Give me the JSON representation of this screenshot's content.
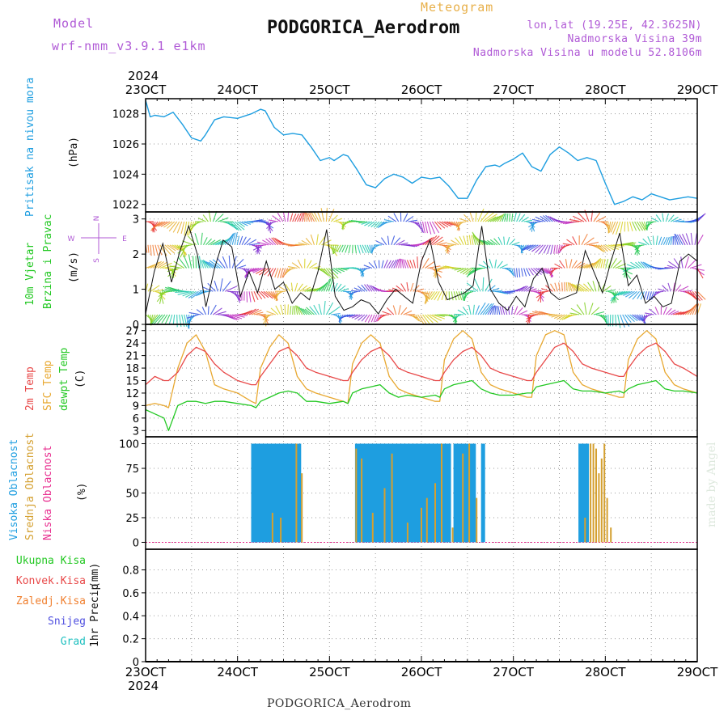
{
  "header": {
    "model_label": "Model",
    "model_name": "wrf-nmm_v3.9.1 e1km",
    "chart_type": "Meteogram",
    "station": "PODGORICA_Aerodrom",
    "coords": "lon,lat (19.25E, 42.3625N)",
    "elevation": "Nadmorska Visina 39m",
    "model_elevation": "Nadmorska Visina u modelu 52.8106m"
  },
  "footer": {
    "station": "PODGORICA_Aerodrom",
    "watermark": "made by Angel"
  },
  "axis": {
    "year": "2024",
    "dates": [
      "23OCT",
      "24OCT",
      "25OCT",
      "26OCT",
      "27OCT",
      "28OCT",
      "29OCT"
    ]
  },
  "colors": {
    "pressure": "#1e9ee0",
    "temp2m": "#e84848",
    "sfc": "#e8a830",
    "dew": "#22c822",
    "cloud_high": "#1e9ee0",
    "cloud_mid": "#d4a030",
    "cloud_low": "#e83090"
  },
  "chart_data": [
    {
      "type": "line",
      "panel": "pressure",
      "ylabel_main": "Pritisak na nivou mora",
      "unit": "(hPa)",
      "yticks": [
        "1022",
        "1024",
        "1026",
        "1028"
      ],
      "ylim": [
        1021.5,
        1029
      ],
      "x_days": [
        0,
        0.05,
        0.1,
        0.2,
        0.3,
        0.4,
        0.5,
        0.6,
        0.65,
        0.75,
        0.85,
        1.0,
        1.15,
        1.25,
        1.3,
        1.4,
        1.5,
        1.6,
        1.7,
        1.8,
        1.9,
        2.0,
        2.05,
        2.15,
        2.2,
        2.3,
        2.4,
        2.5,
        2.6,
        2.7,
        2.8,
        2.9,
        3.0,
        3.1,
        3.2,
        3.3,
        3.4,
        3.5,
        3.6,
        3.7,
        3.8,
        3.85,
        3.9,
        4.0,
        4.1,
        4.2,
        4.3,
        4.4,
        4.5,
        4.6,
        4.7,
        4.8,
        4.9,
        5.0,
        5.1,
        5.2,
        5.3,
        5.4,
        5.5,
        5.6,
        5.7,
        5.8,
        5.9,
        6.0
      ],
      "series": [
        {
          "values": [
            1028.9,
            1027.8,
            1027.9,
            1027.8,
            1028.1,
            1027.3,
            1026.4,
            1026.2,
            1026.6,
            1027.6,
            1027.8,
            1027.7,
            1028.0,
            1028.3,
            1028.2,
            1027.1,
            1026.6,
            1026.7,
            1026.6,
            1025.8,
            1024.9,
            1025.1,
            1024.9,
            1025.3,
            1025.2,
            1024.3,
            1023.3,
            1023.1,
            1023.7,
            1024.0,
            1023.8,
            1023.4,
            1023.8,
            1023.7,
            1023.8,
            1023.2,
            1022.4,
            1022.4,
            1023.6,
            1024.5,
            1024.6,
            1024.5,
            1024.7,
            1025.0,
            1025.4,
            1024.5,
            1024.2,
            1025.3,
            1025.8,
            1025.4,
            1024.9,
            1025.1,
            1024.9,
            1023.4,
            1022.0,
            1022.2,
            1022.5,
            1022.3,
            1022.7,
            1022.5,
            1022.3,
            1022.4,
            1022.5,
            1022.4
          ]
        }
      ]
    },
    {
      "type": "line",
      "panel": "wind",
      "ylabel_main": "10m Vjetar",
      "ylabel_sub": "Brzina i Pravac",
      "unit": "(m/s)",
      "yticks": [
        "0",
        "1",
        "2",
        "3"
      ],
      "ylim": [
        0,
        3.2
      ],
      "compass": {
        "n": "N",
        "s": "S",
        "w": "W",
        "e": "E"
      },
      "series": [
        {
          "name": "Brzina",
          "values": [
            0.3,
            1.5,
            2.3,
            1.2,
            2.1,
            2.8,
            2.0,
            0.5,
            1.6,
            2.4,
            2.2,
            0.8,
            1.5,
            0.9,
            1.8,
            1.0,
            1.2,
            0.6,
            0.9,
            0.7,
            1.5,
            2.7,
            0.8,
            0.4,
            0.5,
            0.7,
            0.6,
            0.3,
            0.7,
            1.0,
            0.8,
            0.6,
            1.8,
            2.4,
            1.2,
            0.7,
            0.8,
            0.9,
            1.1,
            2.8,
            1.0,
            0.6,
            0.4,
            0.8,
            0.5,
            1.3,
            1.6,
            0.9,
            0.7,
            0.8,
            0.9,
            2.1,
            1.5,
            0.9,
            1.8,
            2.6,
            1.1,
            1.4,
            0.6,
            0.8,
            0.5,
            0.6,
            1.8,
            2.0,
            1.8
          ]
        }
      ]
    },
    {
      "type": "line",
      "panel": "temperature",
      "ylabel_t2m": "2m Temp",
      "ylabel_sfc": "SFC Temp",
      "ylabel_dew": "dewpt Temp",
      "unit": "(C)",
      "yticks": [
        "3",
        "6",
        "9",
        "12",
        "15",
        "18",
        "21",
        "24",
        "27"
      ],
      "ylim": [
        1.5,
        28.5
      ],
      "x_days": [
        0,
        0.1,
        0.2,
        0.25,
        0.35,
        0.45,
        0.55,
        0.65,
        0.75,
        0.85,
        1.0,
        1.15,
        1.2,
        1.25,
        1.35,
        1.45,
        1.55,
        1.65,
        1.75,
        1.85,
        2.0,
        2.15,
        2.2,
        2.25,
        2.35,
        2.45,
        2.55,
        2.65,
        2.75,
        2.85,
        3.0,
        3.15,
        3.2,
        3.25,
        3.35,
        3.45,
        3.55,
        3.65,
        3.75,
        3.85,
        4.0,
        4.15,
        4.2,
        4.25,
        4.35,
        4.45,
        4.55,
        4.65,
        4.75,
        4.85,
        5.0,
        5.15,
        5.2,
        5.25,
        5.35,
        5.45,
        5.55,
        5.65,
        5.75,
        5.85,
        6.0
      ],
      "series": [
        {
          "name": "2m Temp",
          "values": [
            14,
            16,
            15,
            15,
            17,
            21,
            23,
            22,
            19,
            17,
            15,
            14,
            14,
            16,
            19,
            22,
            23,
            21,
            18,
            17,
            16,
            15,
            15,
            17,
            20,
            22,
            23,
            21,
            18,
            17,
            16,
            15,
            15,
            17,
            20,
            22,
            23,
            21,
            18,
            17,
            16,
            15,
            15,
            17,
            20,
            23,
            24,
            22,
            19,
            18,
            17,
            16,
            16,
            18,
            21,
            23,
            24,
            22,
            19,
            18,
            16
          ]
        },
        {
          "name": "SFC Temp",
          "values": [
            9,
            9.5,
            9,
            8.5,
            18,
            24,
            26,
            22,
            14,
            13,
            12,
            10,
            9.5,
            18,
            23,
            26,
            24,
            16,
            13,
            12,
            11,
            10,
            9.5,
            19,
            24,
            26,
            24,
            16,
            13,
            12,
            11,
            10,
            10,
            20,
            25,
            27,
            25,
            17,
            14,
            13,
            12,
            11,
            11,
            21,
            26,
            27,
            26,
            17,
            14,
            13,
            12,
            11,
            11,
            20,
            25,
            27,
            25,
            17,
            14,
            13,
            12
          ]
        },
        {
          "name": "dewpt Temp",
          "values": [
            8,
            7,
            6,
            3,
            9,
            10,
            10,
            9.5,
            10,
            10,
            9.5,
            9,
            8.5,
            10,
            11,
            12,
            12.5,
            12,
            10,
            10,
            9.5,
            10,
            9.5,
            12,
            13,
            13.5,
            14,
            12,
            11,
            11.5,
            11,
            11.5,
            11,
            13,
            14,
            14.5,
            15,
            13,
            12,
            11.5,
            11.5,
            12,
            12,
            13.5,
            14,
            14.5,
            15,
            13,
            12.5,
            12.5,
            12,
            12.5,
            12,
            13,
            14,
            14.5,
            15,
            13,
            12.5,
            12.5,
            12
          ]
        }
      ]
    },
    {
      "type": "bar",
      "panel": "clouds",
      "ylabel_high": "Visoka Oblacnost",
      "ylabel_mid": "Srednja Oblacnost",
      "ylabel_low": "Niska Oblacnost",
      "unit": "(%)",
      "yticks": [
        "0",
        "25",
        "50",
        "75",
        "100"
      ],
      "ylim": [
        -7,
        107
      ],
      "series": [
        {
          "name": "Visoka Oblacnost",
          "x_days": [
            1.17,
            1.2,
            1.23,
            1.27,
            1.3,
            1.33,
            1.37,
            1.4,
            1.43,
            1.47,
            1.5,
            1.53,
            1.57,
            1.6,
            1.63,
            1.67,
            2.3,
            2.33,
            2.37,
            2.4,
            2.43,
            2.47,
            2.5,
            2.53,
            2.57,
            2.6,
            2.63,
            2.67,
            2.7,
            2.73,
            2.77,
            2.8,
            2.83,
            2.87,
            2.9,
            2.93,
            2.97,
            3.0,
            3.03,
            3.07,
            3.1,
            3.13,
            3.17,
            3.2,
            3.23,
            3.27,
            3.3,
            3.37,
            3.4,
            3.43,
            3.47,
            3.5,
            3.53,
            3.57,
            3.67,
            4.73,
            4.77,
            4.8
          ],
          "values": [
            100,
            100,
            100,
            100,
            100,
            100,
            100,
            100,
            100,
            100,
            100,
            100,
            100,
            100,
            100,
            100,
            100,
            100,
            100,
            100,
            100,
            100,
            100,
            100,
            100,
            100,
            100,
            100,
            100,
            100,
            100,
            100,
            100,
            100,
            100,
            100,
            100,
            100,
            100,
            100,
            100,
            100,
            100,
            100,
            100,
            100,
            100,
            100,
            100,
            100,
            100,
            100,
            100,
            100,
            100,
            100,
            100,
            100
          ]
        },
        {
          "name": "Srednja Oblacnost",
          "x_days": [
            1.38,
            1.47,
            1.64,
            1.7,
            2.29,
            2.35,
            2.47,
            2.6,
            2.68,
            2.85,
            3.0,
            3.06,
            3.15,
            3.22,
            3.34,
            3.45,
            3.52,
            3.6,
            4.78,
            4.84,
            4.87,
            4.9,
            4.93,
            4.96,
            4.99,
            5.02,
            5.06
          ],
          "values": [
            30,
            25,
            100,
            70,
            95,
            85,
            30,
            55,
            90,
            20,
            35,
            45,
            60,
            100,
            15,
            90,
            100,
            45,
            25,
            100,
            100,
            95,
            70,
            85,
            100,
            45,
            15
          ]
        },
        {
          "name": "Niska Oblacnost",
          "x_days": [],
          "values": []
        }
      ]
    },
    {
      "type": "bar",
      "panel": "precipitation",
      "ylabel": "1hr Precip",
      "unit": "(mm)",
      "yticks": [
        "0",
        "0.2",
        "0.4",
        "0.6",
        "0.8"
      ],
      "ylim": [
        0,
        0.98
      ],
      "legend": [
        "Ukupna Kisa",
        "Konvek.Kisa",
        "Zaledj.Kisa",
        "Snijeg",
        "Grad"
      ],
      "legend_colors": [
        "#22c822",
        "#e84848",
        "#f08030",
        "#5050e0",
        "#20c0c0"
      ],
      "series": []
    }
  ]
}
